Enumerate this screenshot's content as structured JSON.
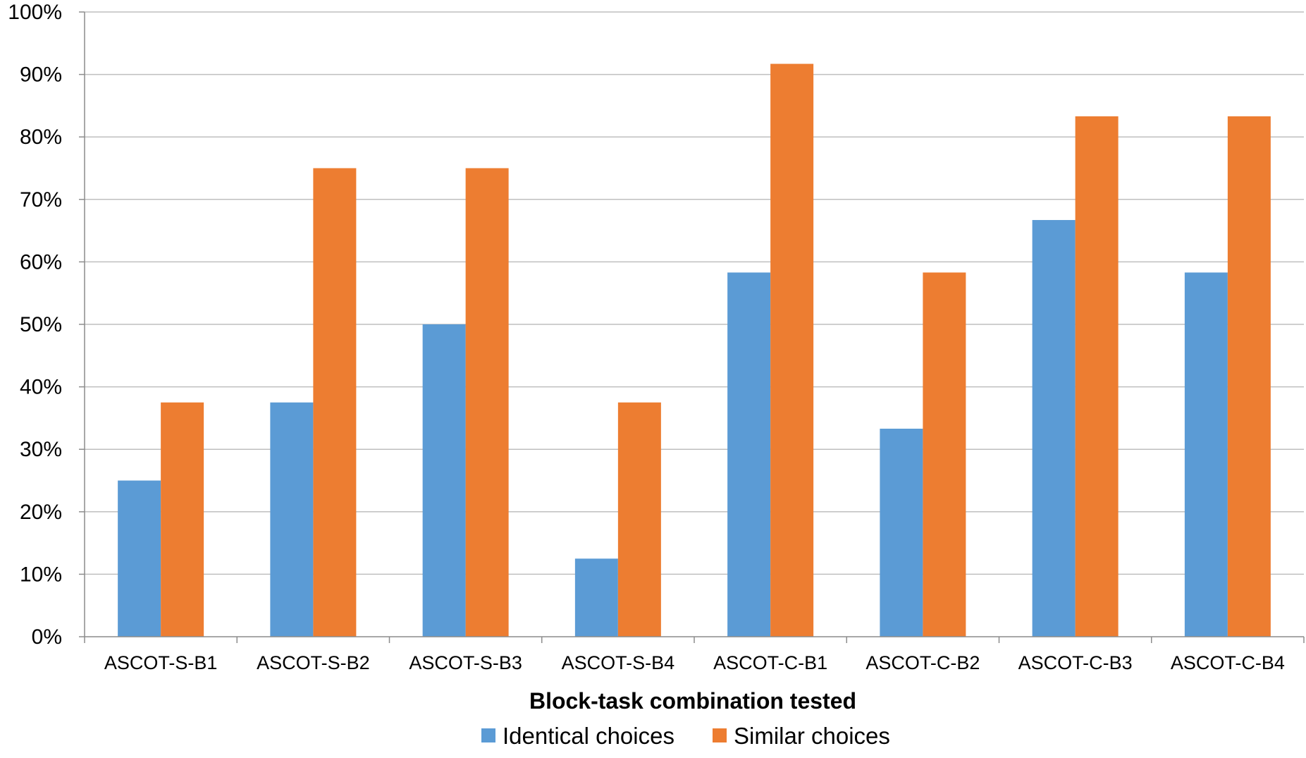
{
  "chart_data": {
    "type": "bar",
    "title": "",
    "xlabel": "Block-task combination tested",
    "ylabel": "",
    "ylim": [
      0,
      100
    ],
    "y_unit": "%",
    "y_ticks": [
      "0%",
      "10%",
      "20%",
      "30%",
      "40%",
      "50%",
      "60%",
      "70%",
      "80%",
      "90%",
      "100%"
    ],
    "grid": true,
    "legend_position": "bottom",
    "categories": [
      "ASCOT-S-B1",
      "ASCOT-S-B2",
      "ASCOT-S-B3",
      "ASCOT-S-B4",
      "ASCOT-C-B1",
      "ASCOT-C-B2",
      "ASCOT-C-B3",
      "ASCOT-C-B4"
    ],
    "series": [
      {
        "name": "Identical choices",
        "color": "#5B9BD5",
        "values": [
          25.0,
          37.5,
          50.0,
          12.5,
          58.3,
          33.3,
          66.7,
          58.3
        ]
      },
      {
        "name": "Similar choices",
        "color": "#ED7D31",
        "values": [
          37.5,
          75.0,
          75.0,
          37.5,
          91.7,
          58.3,
          83.3,
          83.3
        ]
      }
    ]
  }
}
